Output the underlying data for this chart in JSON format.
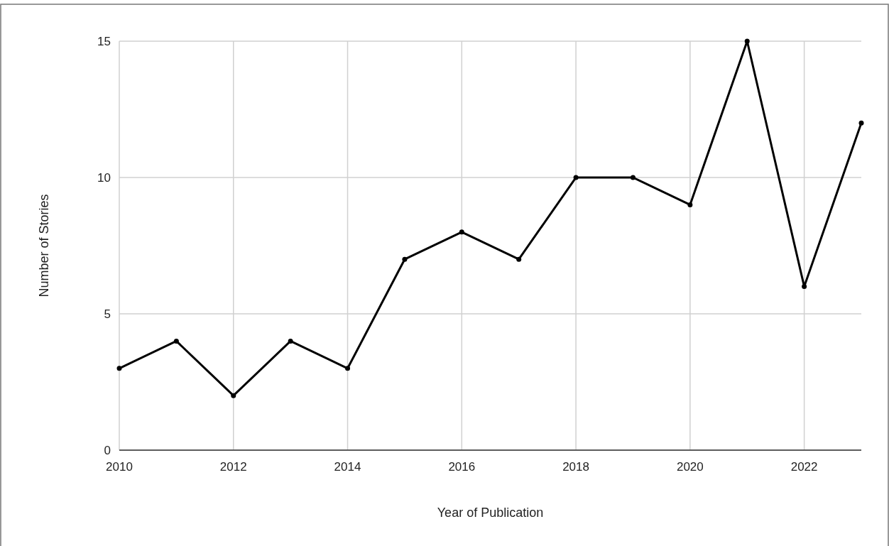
{
  "chart_data": {
    "type": "line",
    "xlabel": "Year of Publication",
    "ylabel": "Number of Stories",
    "x": [
      2010,
      2011,
      2012,
      2013,
      2014,
      2015,
      2016,
      2017,
      2018,
      2019,
      2020,
      2021,
      2022,
      2023
    ],
    "series": [
      {
        "color": "#000000",
        "values": [
          3,
          4,
          2,
          4,
          3,
          7,
          8,
          7,
          10,
          10,
          9,
          15,
          6,
          12
        ]
      }
    ],
    "xlim": [
      2010,
      2023
    ],
    "xticks": [
      2010,
      2012,
      2014,
      2016,
      2018,
      2020,
      2022
    ],
    "ylim": [
      0,
      15
    ],
    "yticks": [
      0,
      5,
      10,
      15
    ],
    "grid": true,
    "marker": "circle",
    "line_style": "solid"
  }
}
